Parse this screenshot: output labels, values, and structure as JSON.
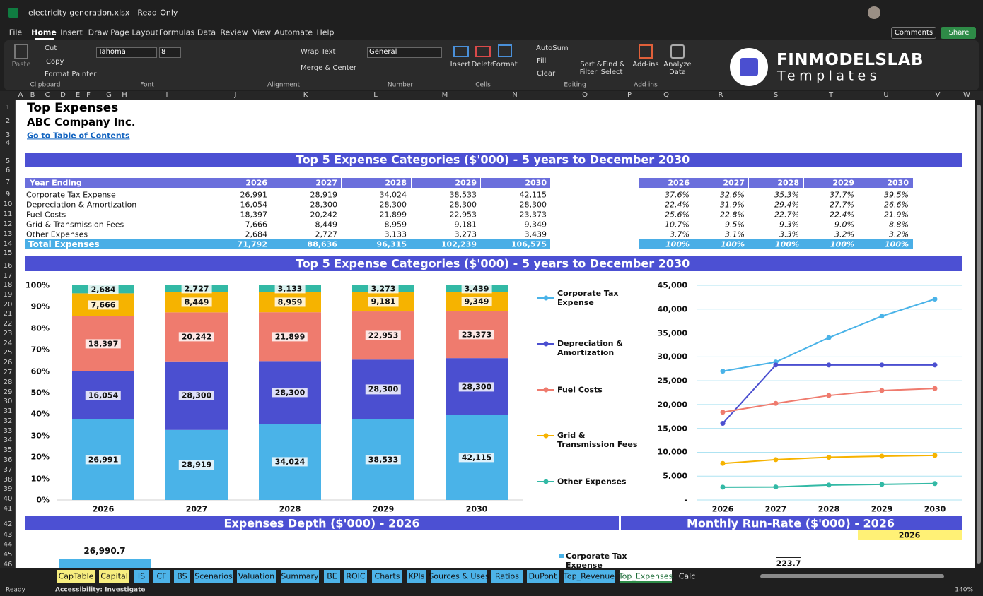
{
  "window": {
    "title": "electricity-generation.xlsx - Read-Only"
  },
  "menu": [
    "File",
    "Home",
    "Insert",
    "Draw",
    "Page Layout",
    "Formulas",
    "Data",
    "Review",
    "View",
    "Automate",
    "Help"
  ],
  "menu_buttons": [
    "Comments",
    "Share"
  ],
  "ribbon": {
    "clipboard": {
      "paste": "Paste",
      "cut": "Cut",
      "copy": "Copy",
      "format_painter": "Format Painter",
      "label": "Clipboard"
    },
    "font": {
      "name": "Tahoma",
      "size": "8",
      "label": "Font"
    },
    "alignment": {
      "wrap": "Wrap Text",
      "merge": "Merge & Center",
      "label": "Alignment"
    },
    "number": {
      "format": "General",
      "label": "Number"
    },
    "cells": {
      "insert": "Insert",
      "delete": "Delete",
      "format": "Format",
      "label": "Cells"
    },
    "editing": {
      "autosum": "AutoSum",
      "fill": "Fill",
      "clear": "Clear",
      "sort": [
        "Sort &",
        "Filter"
      ],
      "find": [
        "Find &",
        "Select"
      ],
      "label": "Editing"
    },
    "addins": {
      "addins": "Add-ins",
      "label": "Add-ins"
    },
    "analyze": [
      "Analyze",
      "Data"
    ],
    "logo": {
      "brand": "FINMODELSLAB",
      "sub": "Templates"
    }
  },
  "columns": [
    "A",
    "B",
    "C",
    "D",
    "E",
    "F",
    "G",
    "H",
    "I",
    "J",
    "K",
    "L",
    "M",
    "N",
    "O",
    "P",
    "Q",
    "R",
    "S",
    "T",
    "U",
    "V",
    "W"
  ],
  "rows": [
    1,
    2,
    3,
    4,
    5,
    6,
    7,
    9,
    10,
    11,
    12,
    13,
    14,
    15,
    16,
    17,
    18,
    19,
    20,
    21,
    22,
    23,
    24,
    25,
    26,
    27,
    28,
    29,
    30,
    31,
    32,
    33,
    34,
    35,
    36,
    37,
    38,
    39,
    40,
    41,
    42,
    43,
    44,
    45,
    46
  ],
  "sheet": {
    "title": "Top Expenses",
    "company": "ABC Company Inc.",
    "link": "Go to Table of Contents",
    "banner": "Top 5 Expense Categories ($'000) - 5 years to December 2030",
    "table": {
      "header": [
        "Year Ending",
        "2026",
        "2027",
        "2028",
        "2029",
        "2030"
      ],
      "rows": [
        [
          "Corporate Tax Expense",
          "26,991",
          "28,919",
          "34,024",
          "38,533",
          "42,115"
        ],
        [
          "Depreciation & Amortization",
          "16,054",
          "28,300",
          "28,300",
          "28,300",
          "28,300"
        ],
        [
          "Fuel Costs",
          "18,397",
          "20,242",
          "21,899",
          "22,953",
          "23,373"
        ],
        [
          "Grid & Transmission Fees",
          "7,666",
          "8,449",
          "8,959",
          "9,181",
          "9,349"
        ],
        [
          "Other Expenses",
          "2,684",
          "2,727",
          "3,133",
          "3,273",
          "3,439"
        ]
      ],
      "total": [
        "Total Expenses",
        "71,792",
        "88,636",
        "96,315",
        "102,239",
        "106,575"
      ]
    },
    "share_table": {
      "header": [
        "2026",
        "2027",
        "2028",
        "2029",
        "2030"
      ],
      "rows": [
        [
          "37.6%",
          "32.6%",
          "35.3%",
          "37.7%",
          "39.5%"
        ],
        [
          "22.4%",
          "31.9%",
          "29.4%",
          "27.7%",
          "26.6%"
        ],
        [
          "25.6%",
          "22.8%",
          "22.7%",
          "22.4%",
          "21.9%"
        ],
        [
          "10.7%",
          "9.5%",
          "9.3%",
          "9.0%",
          "8.8%"
        ],
        [
          "3.7%",
          "3.1%",
          "3.3%",
          "3.2%",
          "3.2%"
        ]
      ],
      "total": [
        "100%",
        "100%",
        "100%",
        "100%",
        "100%"
      ]
    },
    "lower": {
      "depth_title": "Expenses Depth ($'000) - 2026",
      "runrate_title": "Monthly Run-Rate ($'000) - 2026",
      "runrate_year": "2026",
      "depth_value": "26,990.7",
      "legend": "Corporate Tax Expense",
      "runrate_value": "223.7"
    }
  },
  "chart_data": [
    {
      "type": "bar",
      "stacked": "percent",
      "title": "Top 5 Expense Categories ($'000) - 5 years to December 2030",
      "categories": [
        "2026",
        "2027",
        "2028",
        "2029",
        "2030"
      ],
      "series": [
        {
          "color": "#4ab3e8",
          "values": [
            26991,
            28919,
            34024,
            38533,
            42115
          ],
          "value_labels": [
            "26,991",
            "28,919",
            "34,024",
            "38,533",
            "42,115"
          ]
        },
        {
          "color": "#4b4fd0",
          "values": [
            16054,
            28300,
            28300,
            28300,
            28300
          ],
          "value_labels": [
            "16,054",
            "28,300",
            "28,300",
            "28,300",
            "28,300"
          ]
        },
        {
          "color": "#ef7b6e",
          "values": [
            18397,
            20242,
            21899,
            22953,
            23373
          ],
          "value_labels": [
            "18,397",
            "20,242",
            "21,899",
            "22,953",
            "23,373"
          ]
        },
        {
          "color": "#f6b300",
          "values": [
            7666,
            8449,
            8959,
            9181,
            9349
          ],
          "value_labels": [
            "7,666",
            "8,449",
            "8,959",
            "9,181",
            "9,349"
          ]
        },
        {
          "color": "#32b9a5",
          "values": [
            2684,
            2727,
            3133,
            3273,
            3439
          ],
          "value_labels": [
            "2,684",
            "2,727",
            "3,133",
            "3,273",
            "3,439"
          ]
        }
      ],
      "ylim": [
        0,
        100
      ],
      "yticks": [
        {
          "value": 0,
          "label": "0%"
        },
        {
          "value": 10,
          "label": "10%"
        },
        {
          "value": 20,
          "label": "20%"
        },
        {
          "value": 30,
          "label": "30%"
        },
        {
          "value": 40,
          "label": "40%"
        },
        {
          "value": 50,
          "label": "50%"
        },
        {
          "value": 60,
          "label": "60%"
        },
        {
          "value": 70,
          "label": "70%"
        },
        {
          "value": 80,
          "label": "80%"
        },
        {
          "value": 90,
          "label": "90%"
        },
        {
          "value": 100,
          "label": "100%"
        }
      ],
      "grid": false
    },
    {
      "type": "line",
      "categories": [
        "2026",
        "2027",
        "2028",
        "2029",
        "2030"
      ],
      "series": [
        {
          "name": "Corporate Tax Expense",
          "color": "#4ab3e8",
          "values": [
            26991,
            28919,
            34024,
            38533,
            42115
          ]
        },
        {
          "name": "Depreciation & Amortization",
          "color": "#4b4fd0",
          "values": [
            16054,
            28300,
            28300,
            28300,
            28300
          ]
        },
        {
          "name": "Fuel Costs",
          "color": "#ef7b6e",
          "values": [
            18397,
            20242,
            21899,
            22953,
            23373
          ]
        },
        {
          "name": "Grid & Transmission Fees",
          "color": "#f6b300",
          "values": [
            7666,
            8449,
            8959,
            9181,
            9349
          ]
        },
        {
          "name": "Other Expenses",
          "color": "#32b9a5",
          "values": [
            2684,
            2727,
            3133,
            3273,
            3439
          ]
        }
      ],
      "ylim": [
        0,
        45000
      ],
      "yticks": [
        {
          "value": 0,
          "label": "-"
        },
        {
          "value": 5000,
          "label": "5,000"
        },
        {
          "value": 10000,
          "label": "10,000"
        },
        {
          "value": 15000,
          "label": "15,000"
        },
        {
          "value": 20000,
          "label": "20,000"
        },
        {
          "value": 25000,
          "label": "25,000"
        },
        {
          "value": 30000,
          "label": "30,000"
        },
        {
          "value": 35000,
          "label": "35,000"
        },
        {
          "value": 40000,
          "label": "40,000"
        },
        {
          "value": 45000,
          "label": "45,000"
        }
      ],
      "grid": true,
      "legend": "left"
    }
  ],
  "tabs": [
    {
      "label": "CapTable",
      "color": "#f7ee7f"
    },
    {
      "label": "Capital",
      "color": "#f7ee7f"
    },
    {
      "label": "IS",
      "color": "#4db3e8"
    },
    {
      "label": "CF",
      "color": "#4db3e8"
    },
    {
      "label": "BS",
      "color": "#4db3e8"
    },
    {
      "label": "Scenarios",
      "color": "#4db3e8"
    },
    {
      "label": "Valuation",
      "color": "#4db3e8"
    },
    {
      "label": "Summary",
      "color": "#4db3e8"
    },
    {
      "label": "BE",
      "color": "#4db3e8"
    },
    {
      "label": "ROIC",
      "color": "#4db3e8"
    },
    {
      "label": "Charts",
      "color": "#4db3e8"
    },
    {
      "label": "KPIs",
      "color": "#4db3e8"
    },
    {
      "label": "Sources & Uses",
      "color": "#4db3e8"
    },
    {
      "label": "Ratios",
      "color": "#4db3e8"
    },
    {
      "label": "DuPont",
      "color": "#4db3e8"
    },
    {
      "label": "Top_Revenue",
      "color": "#4db3e8"
    },
    {
      "label": "Top_Expenses",
      "color": "#ffffff",
      "active": true
    },
    {
      "label": "Calc"
    }
  ],
  "status": {
    "ready": "Ready",
    "accessibility": "Accessibility: Investigate",
    "zoom": "140%"
  }
}
